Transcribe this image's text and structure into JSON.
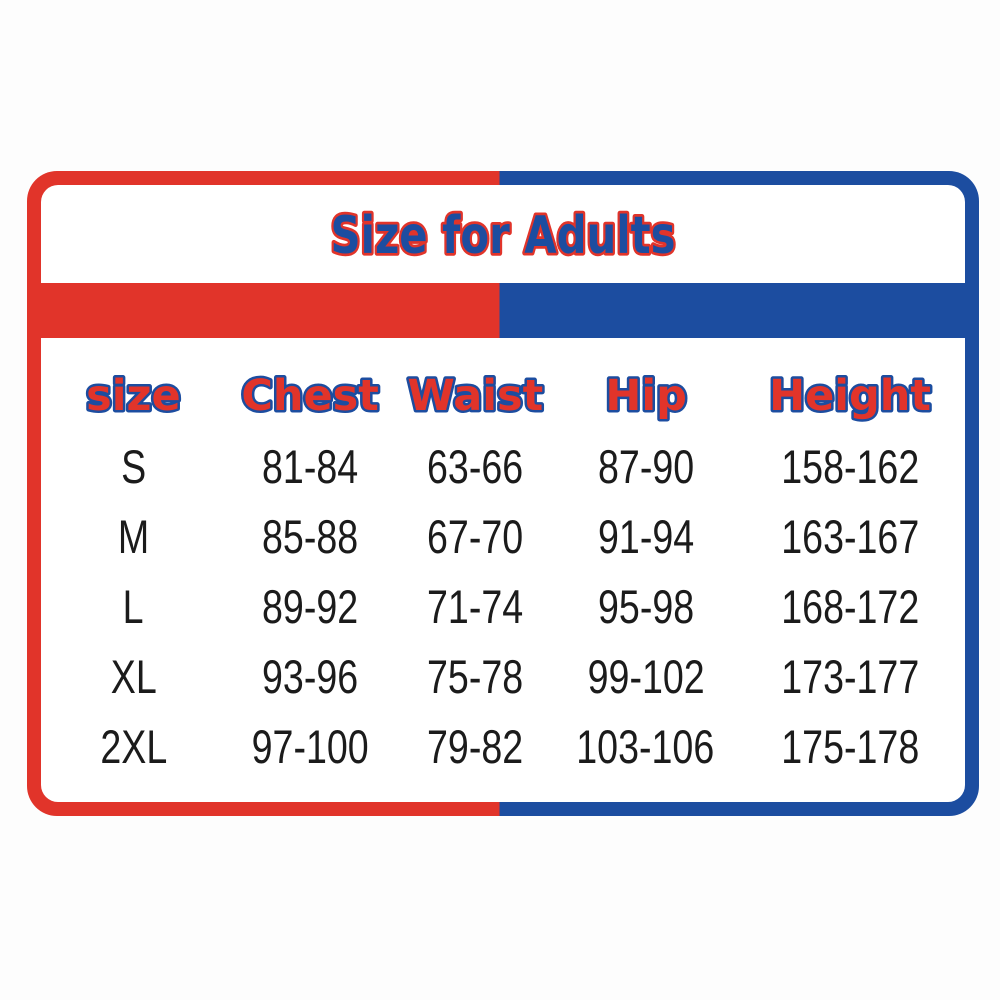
{
  "page": {
    "background": "#fdfdfd"
  },
  "colors": {
    "red": "#e1342a",
    "blue": "#1c4da0",
    "text": "#1b1b1b",
    "panel": "#ffffff"
  },
  "chart_data": {
    "type": "table",
    "title": "Size for Adults",
    "columns": [
      "size",
      "Chest",
      "Waist",
      "Hip",
      "Height"
    ],
    "rows": [
      [
        "S",
        "81-84",
        "63-66",
        "87-90",
        "158-162"
      ],
      [
        "M",
        "85-88",
        "67-70",
        "91-94",
        "163-167"
      ],
      [
        "L",
        "89-92",
        "71-74",
        "95-98",
        "168-172"
      ],
      [
        "XL",
        "93-96",
        "75-78",
        "99-102",
        "173-177"
      ],
      [
        "2XL",
        "97-100",
        "79-82",
        "103-106",
        "175-178"
      ]
    ],
    "layout": {
      "grid": "off",
      "header_style": "red text with blue outline, comic lettering",
      "title_style": "blue text with red outline, comic lettering",
      "frame": "rounded rectangle, left half red, right half blue"
    }
  }
}
